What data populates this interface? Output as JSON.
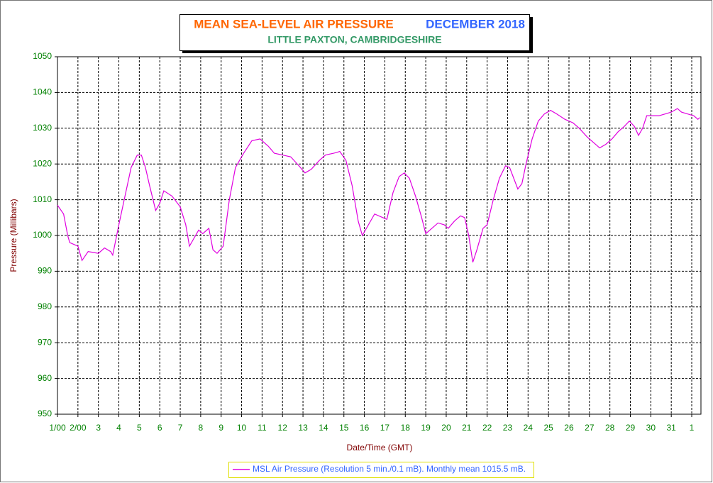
{
  "chart_data": {
    "type": "line",
    "title": "MEAN SEA-LEVEL AIR PRESSURE",
    "title_date": "DECEMBER 2018",
    "subtitle": "LITTLE PAXTON, CAMBRIDGESHIRE",
    "xlabel": "Date/Time (GMT)",
    "ylabel": "Pressure (Millibars)",
    "xlim": [
      0,
      31.45
    ],
    "ylim": [
      950,
      1050
    ],
    "yticks": [
      950,
      960,
      970,
      980,
      990,
      1000,
      1010,
      1020,
      1030,
      1040,
      1050
    ],
    "xticks": [
      {
        "value": 0,
        "label": "1/00"
      },
      {
        "value": 1,
        "label": "2/00"
      },
      {
        "value": 2,
        "label": "3"
      },
      {
        "value": 3,
        "label": "4"
      },
      {
        "value": 4,
        "label": "5"
      },
      {
        "value": 5,
        "label": "6"
      },
      {
        "value": 6,
        "label": "7"
      },
      {
        "value": 7,
        "label": "8"
      },
      {
        "value": 8,
        "label": "9"
      },
      {
        "value": 9,
        "label": "10"
      },
      {
        "value": 10,
        "label": "11"
      },
      {
        "value": 11,
        "label": "12"
      },
      {
        "value": 12,
        "label": "13"
      },
      {
        "value": 13,
        "label": "14"
      },
      {
        "value": 14,
        "label": "15"
      },
      {
        "value": 15,
        "label": "16"
      },
      {
        "value": 16,
        "label": "17"
      },
      {
        "value": 17,
        "label": "18"
      },
      {
        "value": 18,
        "label": "19"
      },
      {
        "value": 19,
        "label": "20"
      },
      {
        "value": 20,
        "label": "21"
      },
      {
        "value": 21,
        "label": "22"
      },
      {
        "value": 22,
        "label": "23"
      },
      {
        "value": 23,
        "label": "24"
      },
      {
        "value": 24,
        "label": "25"
      },
      {
        "value": 25,
        "label": "26"
      },
      {
        "value": 26,
        "label": "27"
      },
      {
        "value": 27,
        "label": "28"
      },
      {
        "value": 28,
        "label": "29"
      },
      {
        "value": 29,
        "label": "30"
      },
      {
        "value": 30,
        "label": "31"
      },
      {
        "value": 31,
        "label": "1"
      }
    ],
    "grid": true,
    "x": [
      0,
      0.3,
      0.5,
      0.6,
      1.0,
      1.2,
      1.5,
      2.0,
      2.3,
      2.6,
      2.7,
      3.0,
      3.3,
      3.6,
      3.9,
      4.1,
      4.3,
      4.5,
      4.8,
      5.0,
      5.2,
      5.6,
      6.0,
      6.27,
      6.45,
      6.9,
      7.1,
      7.4,
      7.6,
      7.8,
      8.1,
      8.4,
      8.7,
      9.1,
      9.5,
      9.9,
      10.3,
      10.6,
      11.0,
      11.4,
      11.8,
      12.1,
      12.4,
      12.8,
      13.1,
      13.5,
      13.8,
      14.1,
      14.4,
      14.7,
      14.9,
      15.2,
      15.5,
      15.9,
      16.1,
      16.4,
      16.7,
      16.95,
      17.2,
      17.5,
      17.8,
      18.0,
      18.3,
      18.6,
      18.9,
      19.1,
      19.4,
      19.7,
      19.9,
      20.1,
      20.3,
      20.5,
      20.8,
      21.0,
      21.3,
      21.6,
      21.9,
      22.1,
      22.3,
      22.5,
      22.7,
      22.9,
      23.2,
      23.5,
      23.8,
      24.1,
      24.4,
      24.8,
      25.2,
      25.5,
      25.9,
      26.2,
      26.5,
      26.8,
      27.1,
      27.4,
      27.7,
      27.95,
      28.2,
      28.4,
      28.6,
      28.8,
      29.1,
      29.4,
      29.7,
      30.0,
      30.3,
      30.5,
      30.8,
      31.1,
      31.3,
      31.4
    ],
    "series": [
      {
        "name": "MSL Air Pressure (Resolution 5 min./0.1 mB). Monthly mean 1015.5 mB.",
        "color": "#e000e0",
        "values": [
          1008.5,
          1006,
          1000,
          998,
          997,
          993,
          995.5,
          995,
          996.5,
          995.5,
          994.5,
          1003,
          1011,
          1019,
          1022.5,
          1022.5,
          1019,
          1014,
          1007,
          1009,
          1012.5,
          1011,
          1008,
          1003,
          997,
          1001.5,
          1000.5,
          1002,
          996,
          995,
          997,
          1010,
          1019,
          1023,
          1026.5,
          1027,
          1025,
          1023,
          1022.5,
          1022,
          1019.5,
          1017.5,
          1018.5,
          1021,
          1022.5,
          1023,
          1023.5,
          1021,
          1014,
          1004,
          1000,
          1003,
          1006,
          1005,
          1004.5,
          1012,
          1016.5,
          1017.5,
          1016,
          1011,
          1005,
          1000.5,
          1002,
          1003.5,
          1003,
          1002,
          1004,
          1005.5,
          1005,
          1000,
          992.5,
          996,
          1002,
          1003,
          1010,
          1016,
          1019.5,
          1019,
          1016,
          1013,
          1014.5,
          1020,
          1027,
          1032,
          1034,
          1035,
          1034,
          1032.5,
          1031.5,
          1030,
          1027.5,
          1026,
          1024.5,
          1025.5,
          1027,
          1029,
          1030.5,
          1032,
          1030.5,
          1028,
          1030,
          1033.5,
          1033.5,
          1033.5,
          1034,
          1034.5,
          1035.5,
          1034.5,
          1034,
          1033.5,
          1032.5,
          1033
        ]
      }
    ]
  }
}
